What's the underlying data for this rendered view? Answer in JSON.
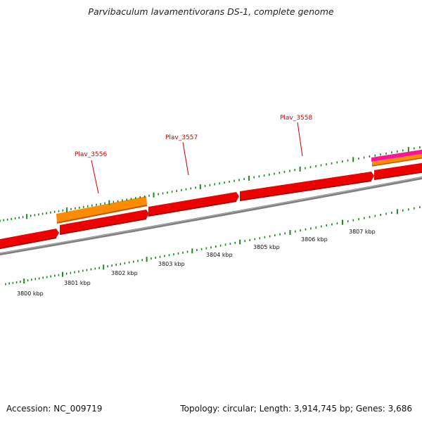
{
  "title": "Parvibaculum lavamentivorans DS-1, complete genome",
  "accession": "Accession: NC_009719",
  "topology": "Topology: circular; Length: 3,914,745 bp; Genes: 3,686",
  "colors": {
    "cds": "#ee0000",
    "cds_shadow": "#aa0000",
    "rna": "#ff8c00",
    "rna_shadow": "#b35c00",
    "pink": "#ff1493",
    "backbone": "#808080",
    "tick": "#1a8a1a",
    "gene_label": "#cc0000"
  },
  "scale_labels": [
    "3800 kbp",
    "3801 kbp",
    "3802 kbp",
    "3803 kbp",
    "3804 kbp",
    "3805 kbp",
    "3806 kbp",
    "3807 kbp"
  ],
  "gene_labels": [
    "Plav_3556",
    "Plav_3557",
    "Plav_3558"
  ]
}
